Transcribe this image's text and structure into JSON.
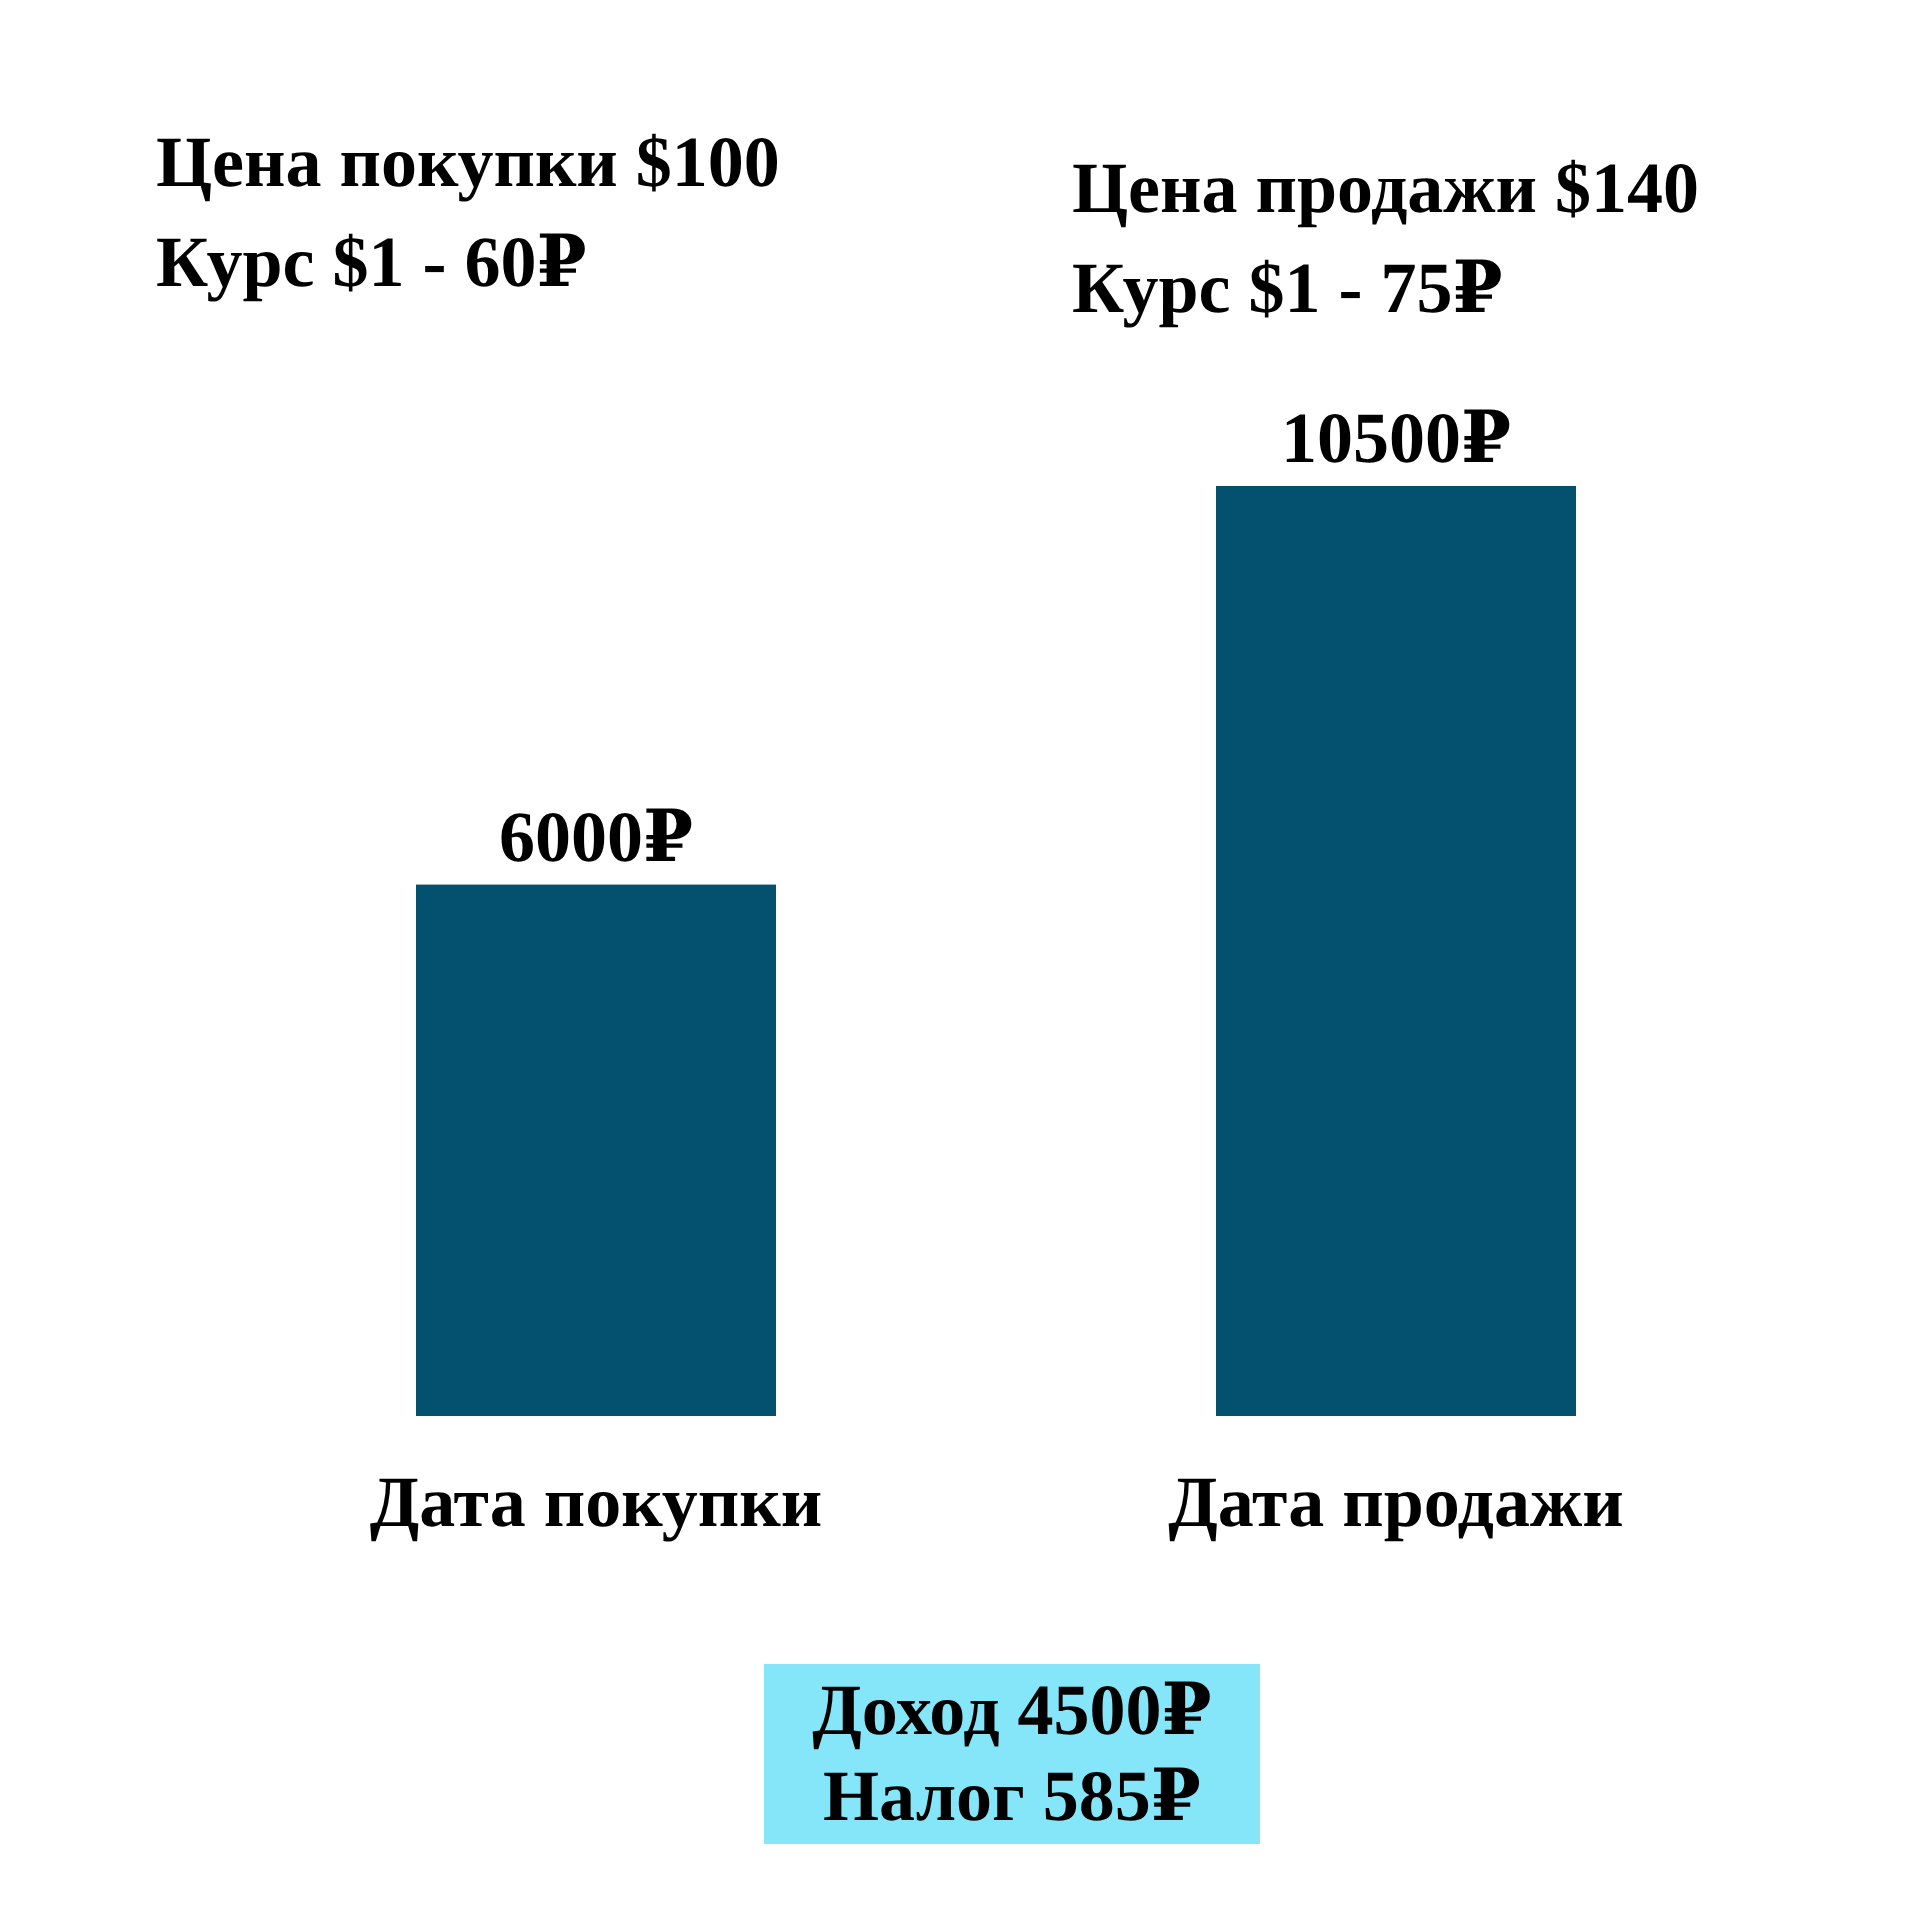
{
  "chart_data": {
    "type": "bar",
    "categories": [
      "Дата покупки",
      "Дата продажи"
    ],
    "values": [
      6000,
      10500
    ],
    "color": "#04516f",
    "data_labels": true,
    "value_labels": [
      "6000₽",
      "10500₽"
    ],
    "annotations": [
      "Цена покупки $100",
      "Курс $1 - 60₽",
      "Цена продажи $140",
      "Курс $1 - 75₽",
      "Доход 4500₽",
      "Налог 585₽"
    ]
  }
}
